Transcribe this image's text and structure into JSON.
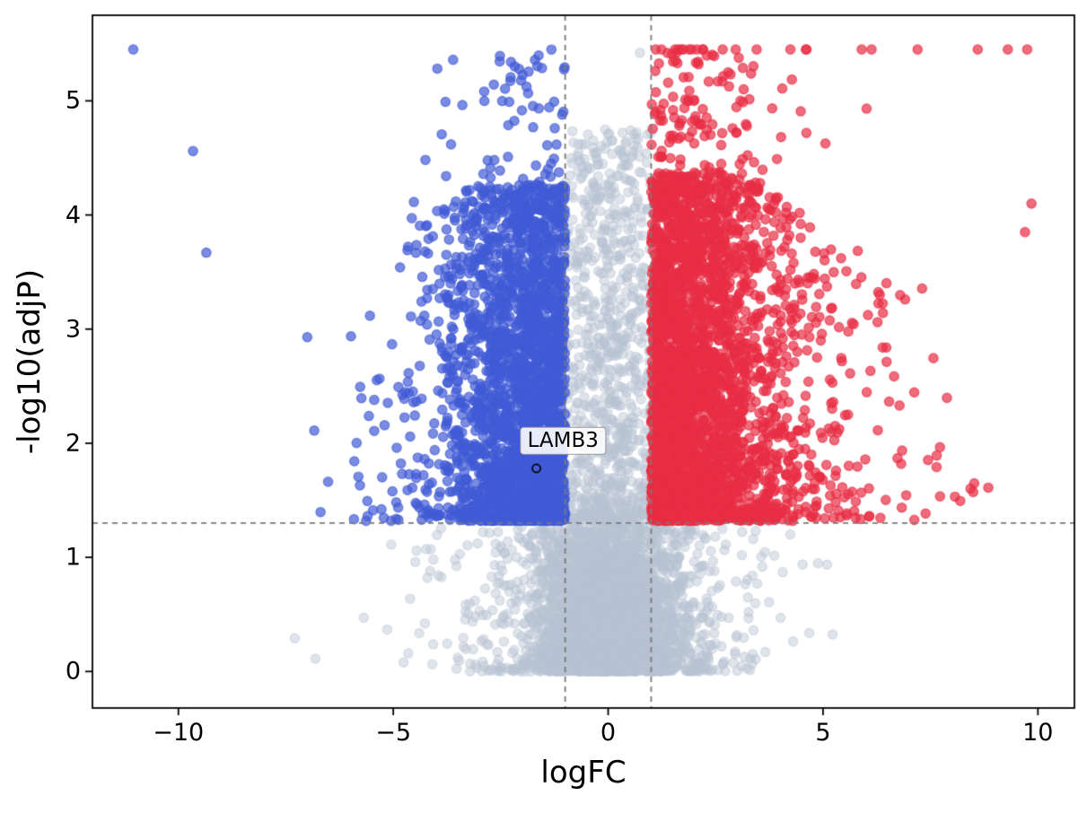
{
  "chart_data": {
    "type": "scatter",
    "subtype": "volcano-plot",
    "title": "",
    "xlabel": "logFC",
    "ylabel": "-log10(adjP)",
    "xlim": [
      -12.0,
      10.85
    ],
    "ylim": [
      -0.32,
      5.75
    ],
    "grid": false,
    "legend": "none",
    "x_ticks": {
      "values": [
        -10,
        -5,
        0,
        5,
        10
      ],
      "labels": [
        "−10",
        "−5",
        "0",
        "5",
        "10"
      ]
    },
    "y_ticks": {
      "values": [
        0,
        1,
        2,
        3,
        4,
        5
      ],
      "labels": [
        "0",
        "1",
        "2",
        "3",
        "4",
        "5"
      ]
    },
    "thresholds": {
      "logfc_lines_x": [
        -1,
        1
      ],
      "significance_line_y": 1.3,
      "line_color": "#7a7a7a",
      "line_dash": [
        6,
        5
      ]
    },
    "cap_y": 5.45,
    "marker_radius": 5.2,
    "seed": 7,
    "series": [
      {
        "name": "not-significant",
        "role": "ns",
        "color": "#b7c4d2",
        "alpha": 0.45,
        "n": 5200
      },
      {
        "name": "down-significant",
        "role": "down",
        "color": "#425bd5",
        "alpha": 0.7,
        "n": 2700
      },
      {
        "name": "up-significant",
        "role": "up",
        "color": "#e82e44",
        "alpha": 0.7,
        "n": 3300
      }
    ],
    "extra_points": [
      {
        "x": -11.05,
        "y": 5.45,
        "series": "down-significant"
      },
      {
        "x": -9.66,
        "y": 4.56,
        "series": "down-significant"
      },
      {
        "x": -9.35,
        "y": 3.67,
        "series": "down-significant"
      },
      {
        "x": 9.85,
        "y": 4.1,
        "series": "up-significant"
      },
      {
        "x": 9.7,
        "y": 3.85,
        "series": "up-significant"
      },
      {
        "x": 4.6,
        "y": 5.45,
        "series": "up-significant"
      },
      {
        "x": 5.9,
        "y": 5.45,
        "series": "up-significant"
      },
      {
        "x": 7.2,
        "y": 5.45,
        "series": "up-significant"
      },
      {
        "x": 8.6,
        "y": 5.45,
        "series": "up-significant"
      },
      {
        "x": 9.3,
        "y": 5.45,
        "series": "up-significant"
      }
    ],
    "annotation": {
      "label": "LAMB3",
      "point": {
        "x": -1.67,
        "y": 1.78
      },
      "label_pos": {
        "x": -1.05,
        "y": 2.02
      },
      "point_marker": "open-circle",
      "point_color": "#000000"
    },
    "spine_color": "#000000"
  }
}
